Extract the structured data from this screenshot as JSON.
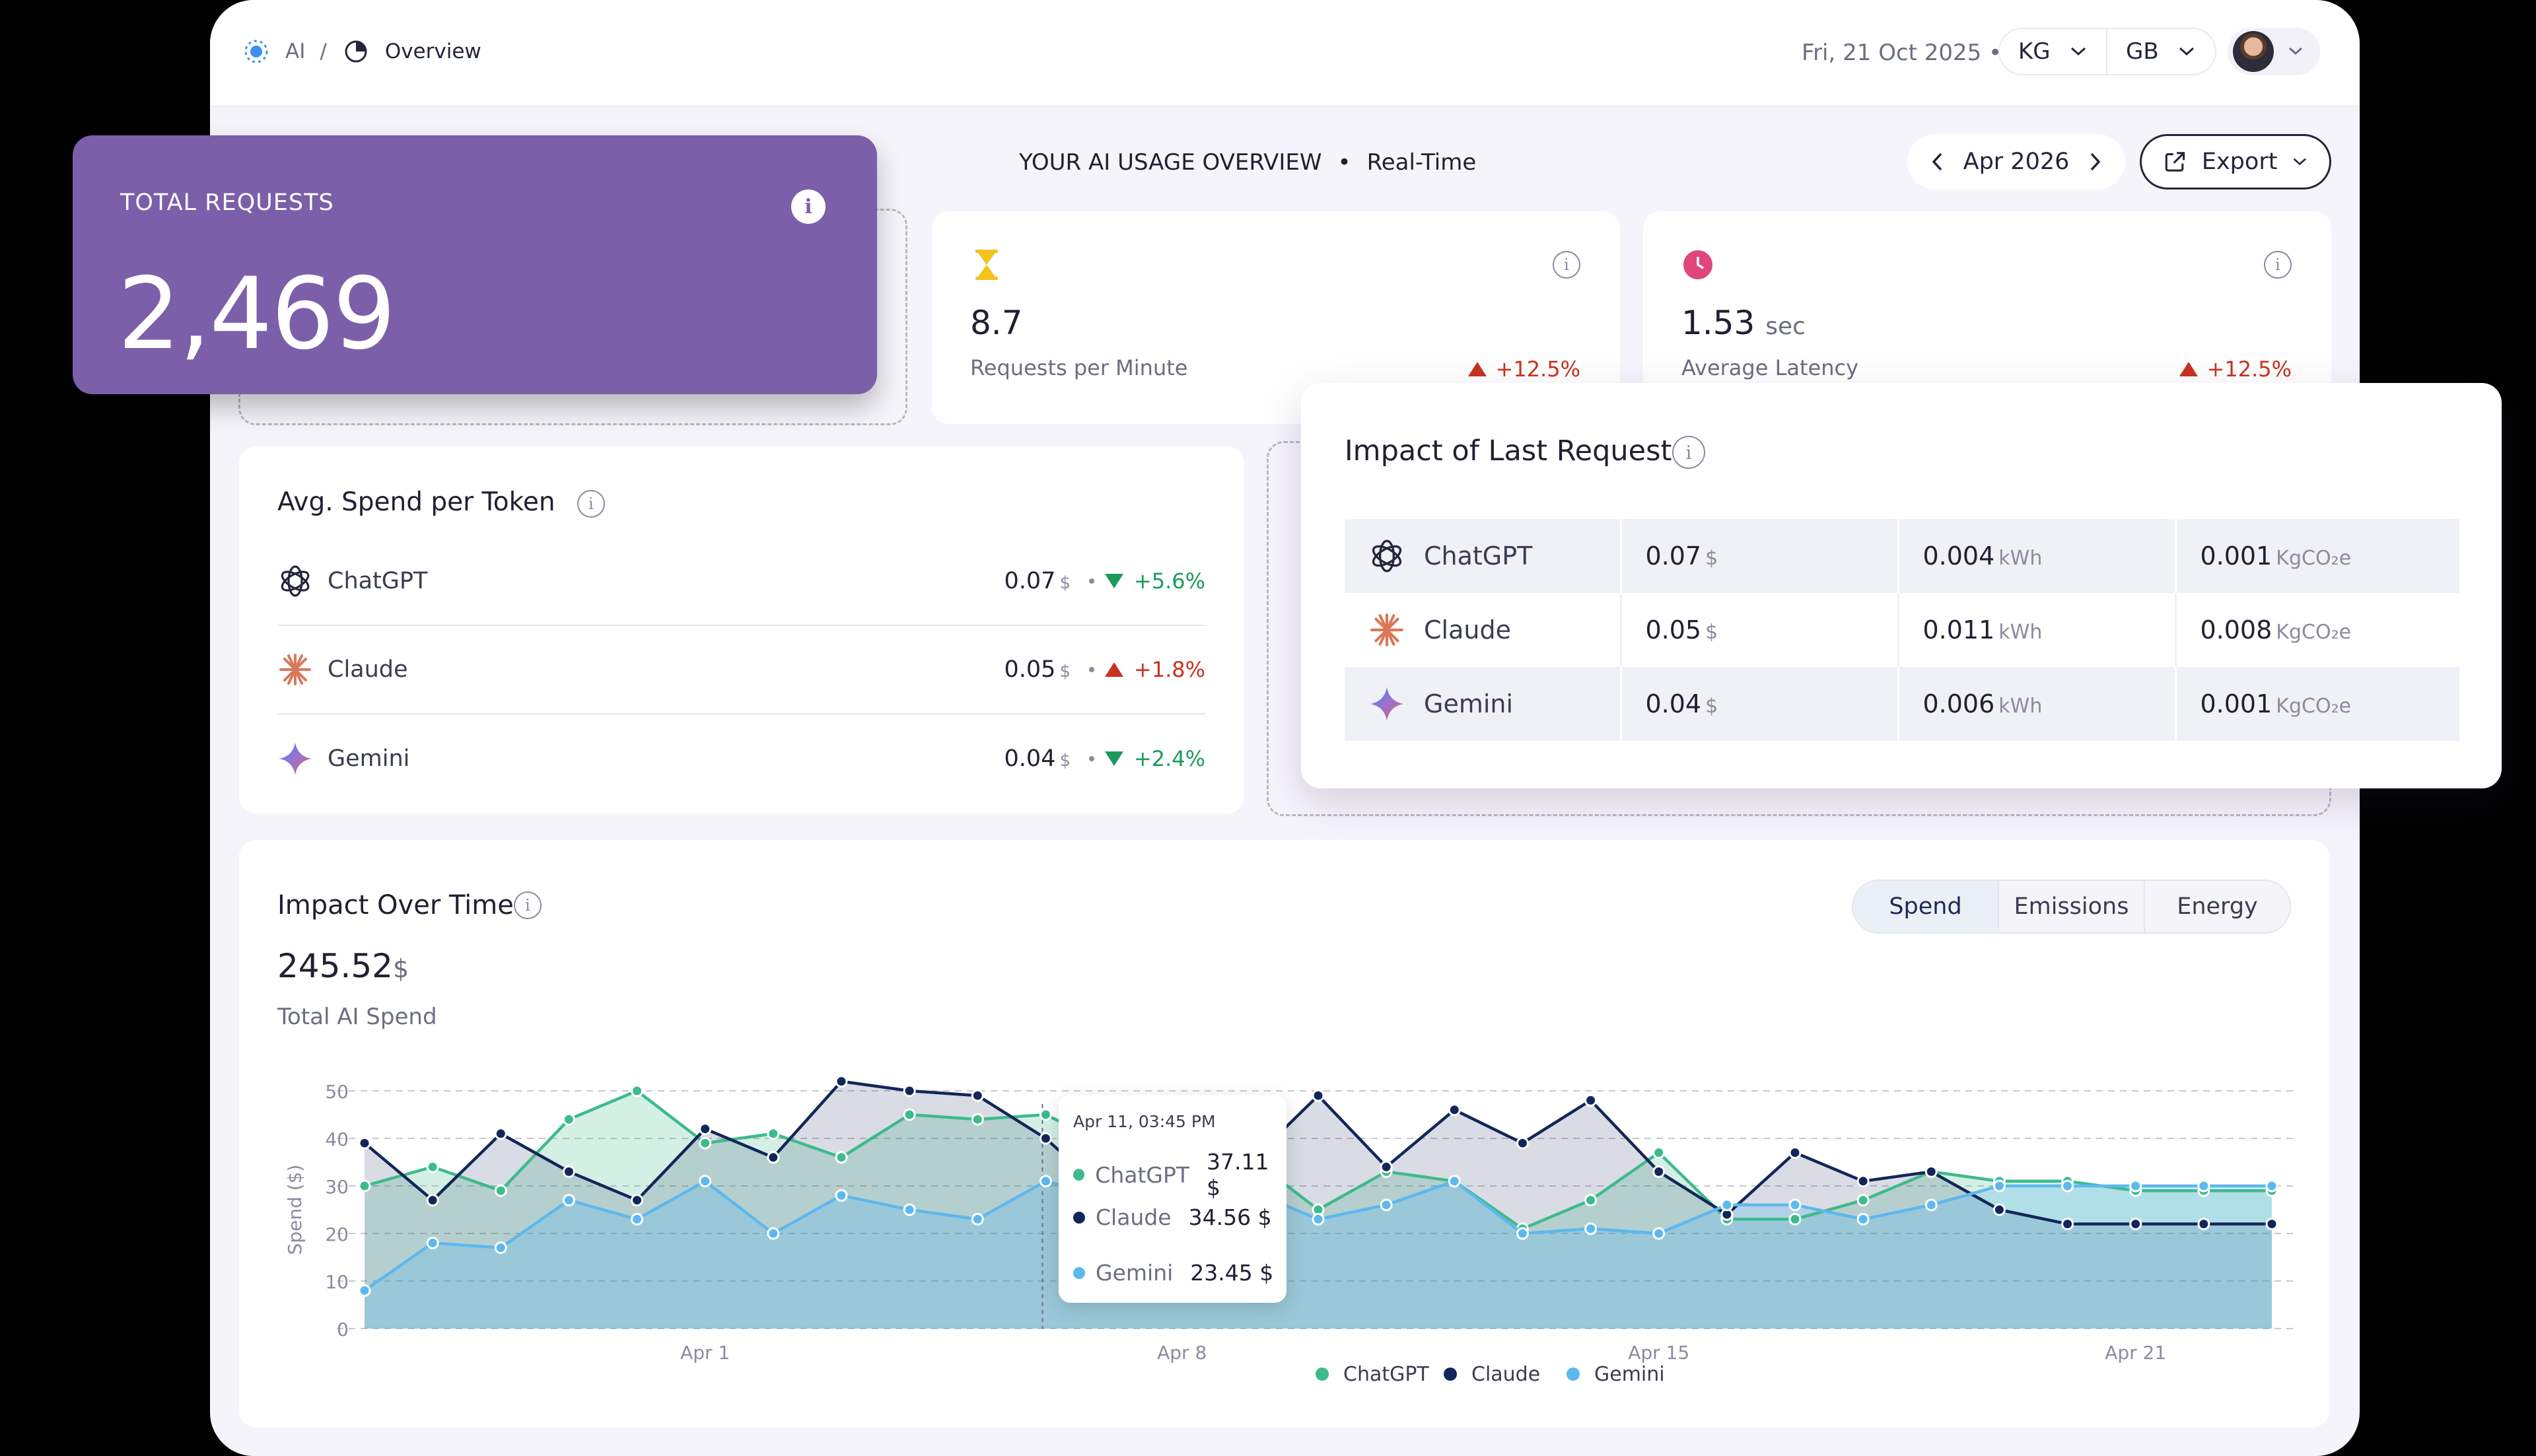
{
  "breadcrumb": {
    "root": "AI",
    "separator": "/",
    "current": "Overview"
  },
  "header": {
    "date": "Fri, 21 Oct 2025",
    "bullet": "•",
    "select_1": "KG",
    "select_2": "GB"
  },
  "overview": {
    "title": "YOUR AI USAGE OVERVIEW",
    "bullet": "•",
    "mode": "Real-Time"
  },
  "month_nav": {
    "label": "Apr 2026"
  },
  "export": {
    "label": "Export"
  },
  "total_requests": {
    "label": "TOTAL REQUESTS",
    "value": "2,469"
  },
  "rpm": {
    "value": "8.7",
    "label": "Requests per Minute",
    "change": "+12.5%"
  },
  "latency": {
    "value": "1.53",
    "unit": "sec",
    "label": "Average Latency",
    "change": "+12.5%"
  },
  "avg_spend": {
    "title": "Avg. Spend per Token",
    "rows": [
      {
        "name": "ChatGPT",
        "value": "0.07",
        "unit": "$",
        "change": "+5.6%",
        "direction": "down",
        "color": "#1b9a5a"
      },
      {
        "name": "Claude",
        "value": "0.05",
        "unit": "$",
        "change": "+1.8%",
        "direction": "up",
        "color": "#c8321e"
      },
      {
        "name": "Gemini",
        "value": "0.04",
        "unit": "$",
        "change": "+2.4%",
        "direction": "down",
        "color": "#1b9a5a"
      }
    ]
  },
  "impact_last": {
    "title": "Impact of Last Request",
    "rows": [
      {
        "name": "ChatGPT",
        "cost": "0.07",
        "cost_unit": "$",
        "energy": "0.004",
        "energy_unit": "kWh",
        "co2": "0.001",
        "co2_unit": "KgCO₂e"
      },
      {
        "name": "Claude",
        "cost": "0.05",
        "cost_unit": "$",
        "energy": "0.011",
        "energy_unit": "kWh",
        "co2": "0.008",
        "co2_unit": "KgCO₂e"
      },
      {
        "name": "Gemini",
        "cost": "0.04",
        "cost_unit": "$",
        "energy": "0.006",
        "energy_unit": "kWh",
        "co2": "0.001",
        "co2_unit": "KgCO₂e"
      }
    ]
  },
  "impact_time": {
    "title": "Impact Over Time",
    "total": "245.52",
    "total_unit": "$",
    "subtitle": "Total AI Spend",
    "tabs": [
      "Spend",
      "Emissions",
      "Energy"
    ],
    "active_tab": "Spend"
  },
  "tooltip": {
    "header": "Apr 11, 03:45 PM",
    "rows": [
      {
        "name": "ChatGPT",
        "value": "37.11 $",
        "color": "#3dbb8a"
      },
      {
        "name": "Claude",
        "value": "34.56 $",
        "color": "#13265a"
      },
      {
        "name": "Gemini",
        "value": "23.45 $",
        "color": "#5db8ee"
      }
    ]
  },
  "colors": {
    "accent_purple": "#7b5fa9",
    "chatgpt": "#3dbb8a",
    "claude": "#13265a",
    "gemini": "#5db8ee",
    "up": "#c8321e",
    "down": "#1b9a5a"
  },
  "icons": {
    "breadcrumb_root": "ai-node-icon",
    "breadcrumb_current": "pie-chart-icon",
    "rpm": "hourglass-icon",
    "latency": "clock-icon",
    "export": "external-link-icon"
  },
  "chart_data": {
    "type": "area",
    "ylabel": "Spend ($)",
    "ylim": [
      0,
      50
    ],
    "yticks": [
      0,
      10,
      20,
      30,
      40,
      50
    ],
    "xtick_labels": [
      "Apr 1",
      "Apr 8",
      "Apr 15",
      "Apr 21"
    ],
    "xtick_index": [
      5,
      12,
      19,
      26
    ],
    "n_points": 29,
    "grid": true,
    "legend_position": "bottom",
    "series": [
      {
        "name": "ChatGPT",
        "color": "#3dbb8a",
        "values": [
          30,
          34,
          29,
          44,
          50,
          39,
          41,
          36,
          45,
          44,
          45,
          38,
          37,
          36,
          25,
          33,
          31,
          21,
          27,
          37,
          23,
          23,
          27,
          33,
          31,
          31,
          29,
          29,
          29
        ]
      },
      {
        "name": "Claude",
        "color": "#13265a",
        "values": [
          39,
          27,
          41,
          33,
          27,
          42,
          36,
          52,
          50,
          49,
          40,
          27,
          40,
          35,
          49,
          34,
          46,
          39,
          48,
          33,
          24,
          37,
          31,
          33,
          25,
          22,
          22,
          22,
          22
        ]
      },
      {
        "name": "Gemini",
        "color": "#5db8ee",
        "values": [
          8,
          18,
          17,
          27,
          23,
          31,
          20,
          28,
          25,
          23,
          31,
          27,
          32,
          29,
          23,
          26,
          31,
          20,
          21,
          20,
          26,
          26,
          23,
          26,
          30,
          30,
          30,
          30,
          30
        ]
      }
    ]
  }
}
